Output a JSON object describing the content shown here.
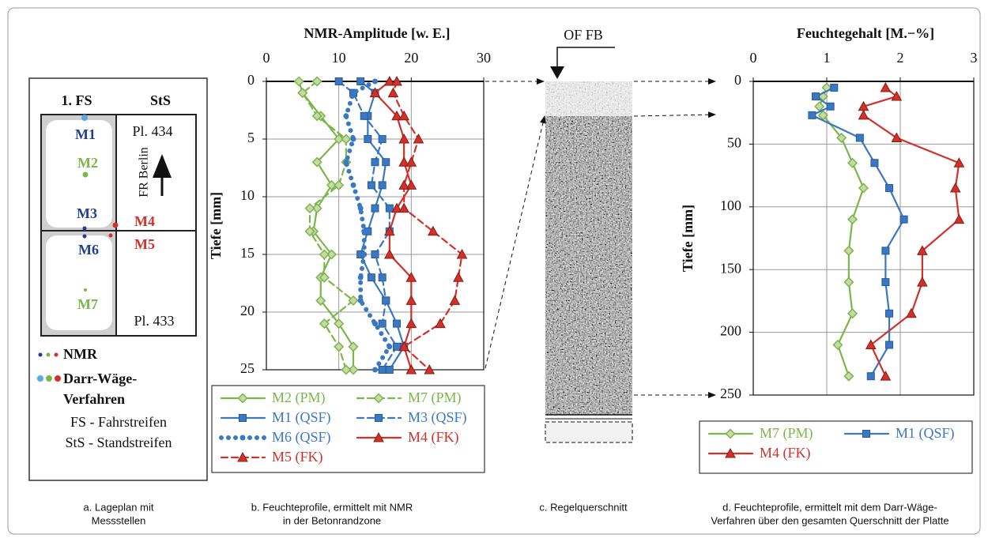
{
  "site_plan": {
    "lane": "1. FS",
    "shoulder": "StS",
    "points": [
      "M1",
      "M2",
      "M3",
      "M4",
      "M5",
      "M6",
      "M7"
    ],
    "plate_top": "Pl. 434",
    "direction": "FR Berlin",
    "plate_bottom": "Pl. 433",
    "legend": {
      "nmr": "NMR",
      "gravimetric": [
        "Darr-Wäge-",
        "Verfahren"
      ]
    },
    "abbreviations": [
      "FS - Fahrstreifen",
      "StS - Standstreifen"
    ]
  },
  "cross_section": {
    "label": "OF FB"
  },
  "chart_data": [
    {
      "type": "line",
      "xlabel": "NMR-Amplitude [w. E.]",
      "ylabel": "Tiefe [mm]",
      "xlim": [
        0,
        30
      ],
      "xticks": [
        0,
        10,
        20,
        30
      ],
      "ylim": [
        0,
        25
      ],
      "yticks": [
        0,
        5,
        10,
        15,
        20,
        25
      ],
      "y_inverted": true,
      "grid": true,
      "legend": "below",
      "depth": [
        0,
        1,
        3,
        5,
        7,
        9,
        11,
        13,
        15,
        17,
        19,
        21,
        23,
        25
      ],
      "series": [
        {
          "name": "M2 (PM)",
          "color": "#7ab648",
          "dash": "solid",
          "marker": "diamond",
          "values": [
            4.5,
            5,
            7.5,
            10,
            7,
            9,
            7,
            6.5,
            9,
            7.5,
            7.5,
            10,
            12,
            12
          ]
        },
        {
          "name": "M7 (PM)",
          "color": "#7ab648",
          "dash": "dashed",
          "marker": "diamond",
          "values": [
            7,
            5,
            7,
            11,
            11,
            10,
            6,
            6,
            8,
            8,
            12,
            8,
            10,
            11
          ]
        },
        {
          "name": "M1 (QSF)",
          "color": "#3a78c2",
          "dash": "solid",
          "marker": "square",
          "values": [
            13,
            15,
            14,
            14,
            16.5,
            16,
            15,
            14,
            13,
            14.5,
            16.5,
            18,
            19,
            17
          ]
        },
        {
          "name": "M3 (QSF)",
          "color": "#3a78c2",
          "dash": "dashed",
          "marker": "square",
          "values": [
            10,
            12,
            13.5,
            16,
            15,
            14.5,
            17,
            17,
            15,
            16,
            16.5,
            16,
            18,
            16
          ]
        },
        {
          "name": "M6 (QSF)",
          "color": "#3a78c2",
          "dash": "dotted",
          "marker": "circle",
          "values": [
            15,
            12,
            11,
            12,
            11,
            12,
            13,
            13.5,
            13.5,
            13,
            13,
            15,
            17,
            15
          ]
        },
        {
          "name": "M4 (FK)",
          "color": "#d2312a",
          "dash": "solid",
          "marker": "triangle",
          "values": [
            17,
            15,
            18,
            19,
            19,
            20,
            18,
            17,
            17,
            20,
            20,
            20,
            19,
            20
          ]
        },
        {
          "name": "M5 (FK)",
          "color": "#d2312a",
          "dash": "dashed",
          "marker": "triangle",
          "values": [
            18,
            17.5,
            19,
            21,
            20,
            19,
            19,
            23,
            27,
            26.5,
            26,
            24,
            19,
            22.5
          ]
        }
      ]
    },
    {
      "type": "line",
      "xlabel": "Feuchtegehalt [M.−%]",
      "ylabel": "Tiefe [mm]",
      "xlim": [
        0,
        3
      ],
      "xticks": [
        0,
        1,
        2,
        3
      ],
      "ylim": [
        0,
        250
      ],
      "yticks": [
        0,
        50,
        100,
        150,
        200,
        250
      ],
      "y_inverted": true,
      "grid": true,
      "legend": "below",
      "depth": [
        5,
        12,
        20,
        27,
        45,
        65,
        85,
        110,
        135,
        160,
        185,
        210,
        235
      ],
      "series": [
        {
          "name": "M7 (PM)",
          "color": "#7ab648",
          "dash": "solid",
          "marker": "diamond",
          "values": [
            1.0,
            0.95,
            0.9,
            0.95,
            1.2,
            1.35,
            1.5,
            1.35,
            1.3,
            1.3,
            1.35,
            1.15,
            1.3
          ]
        },
        {
          "name": "M1 (QSF)",
          "color": "#3a78c2",
          "dash": "solid",
          "marker": "square",
          "values": [
            1.1,
            0.85,
            1.05,
            0.8,
            1.45,
            1.65,
            1.85,
            2.05,
            1.8,
            1.8,
            1.85,
            1.85,
            1.6
          ]
        },
        {
          "name": "M4 (FK)",
          "color": "#d2312a",
          "dash": "solid",
          "marker": "triangle",
          "values": [
            1.8,
            1.95,
            1.5,
            1.5,
            1.95,
            2.8,
            2.75,
            2.8,
            2.3,
            2.3,
            2.15,
            1.6,
            1.8
          ]
        }
      ]
    }
  ],
  "captions": [
    [
      "a. Lageplan mit",
      "Messstellen"
    ],
    [
      "b. Feuchteprofile, ermittelt mit NMR",
      "in der Betonrandzone"
    ],
    [
      "c. Regelquerschnitt"
    ],
    [
      "d. Feuchteprofile, ermittelt mit dem Darr-Wäge-",
      "Verfahren über den gesamten Querschnitt der Platte"
    ]
  ]
}
